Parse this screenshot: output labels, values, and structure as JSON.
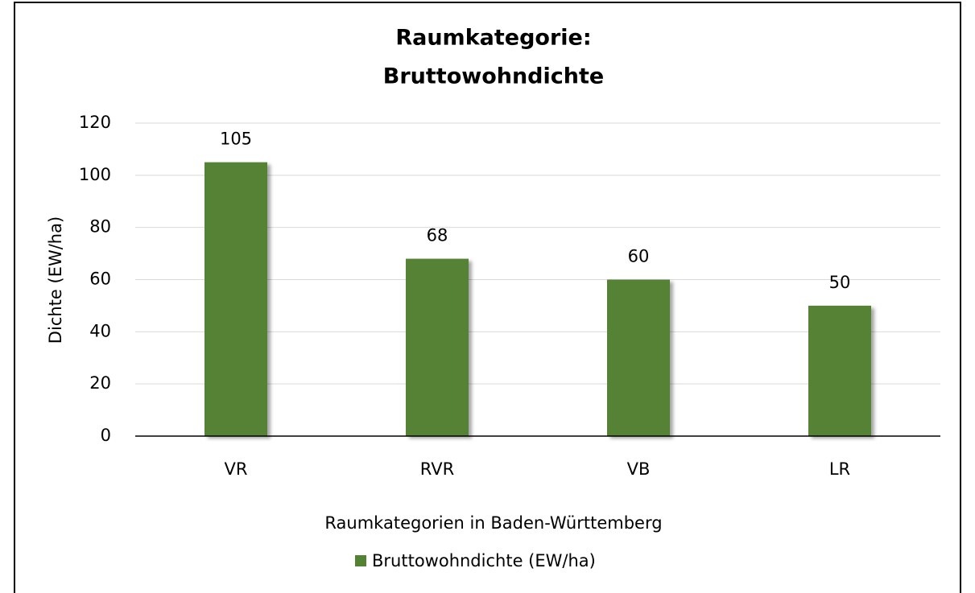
{
  "chart_data": {
    "type": "bar",
    "title": [
      "Raumkategorie:",
      "Bruttowohndichte"
    ],
    "x_label": "Raumkategorien in Baden-Württemberg",
    "y_label": "Dichte (EW/ha)",
    "categories": [
      "VR",
      "RVR",
      "VB",
      "LR"
    ],
    "series": [
      {
        "name": "Bruttowohndichte (EW/ha)",
        "color": "#548235",
        "values": [
          105,
          68,
          60,
          50
        ]
      }
    ],
    "ylim": [
      0,
      120
    ],
    "yticks": [
      0,
      20,
      40,
      60,
      80,
      100,
      120
    ],
    "grid": true,
    "legend": "bottom",
    "data_labels": true
  }
}
